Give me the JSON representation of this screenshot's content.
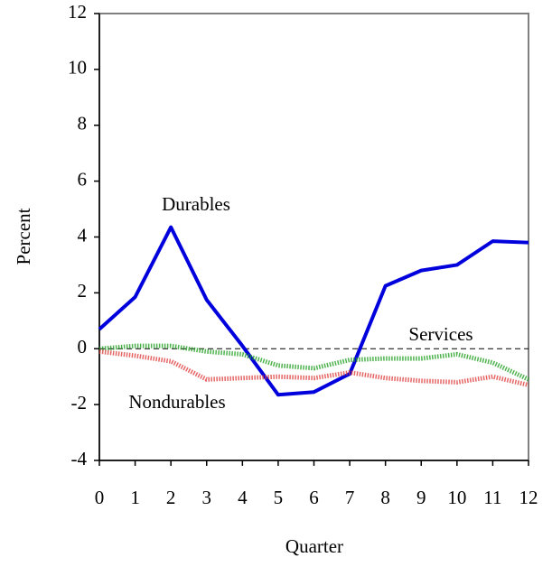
{
  "chart_data": {
    "type": "line",
    "x_label": "Quarter",
    "y_label": "Percent",
    "x": [
      0,
      1,
      2,
      3,
      4,
      5,
      6,
      7,
      8,
      9,
      10,
      11,
      12
    ],
    "series": [
      {
        "name": "Durables",
        "color": "#0000dd",
        "style": "solid",
        "values": [
          0.7,
          1.85,
          4.35,
          1.75,
          0.1,
          -1.65,
          -1.55,
          -0.9,
          2.25,
          2.8,
          3.0,
          3.85,
          3.8
        ]
      },
      {
        "name": "Services",
        "color": "#22a022",
        "style": "dotted",
        "values": [
          0,
          0.1,
          0.1,
          -0.1,
          -0.2,
          -0.6,
          -0.7,
          -0.4,
          -0.35,
          -0.35,
          -0.2,
          -0.5,
          -1.1
        ]
      },
      {
        "name": "Nondurables",
        "color": "#e04040",
        "style": "dotted",
        "values": [
          -0.1,
          -0.25,
          -0.45,
          -1.1,
          -1.05,
          -1.0,
          -1.05,
          -0.85,
          -1.05,
          -1.15,
          -1.2,
          -1.0,
          -1.3
        ]
      }
    ],
    "reference_line": 0,
    "xlim": [
      0,
      12
    ],
    "xticks": [
      0,
      1,
      2,
      3,
      4,
      5,
      6,
      7,
      8,
      9,
      10,
      11,
      12
    ],
    "ylim": [
      -4,
      12
    ],
    "yticks": [
      -4,
      -2,
      0,
      2,
      4,
      6,
      8,
      10,
      12
    ]
  }
}
